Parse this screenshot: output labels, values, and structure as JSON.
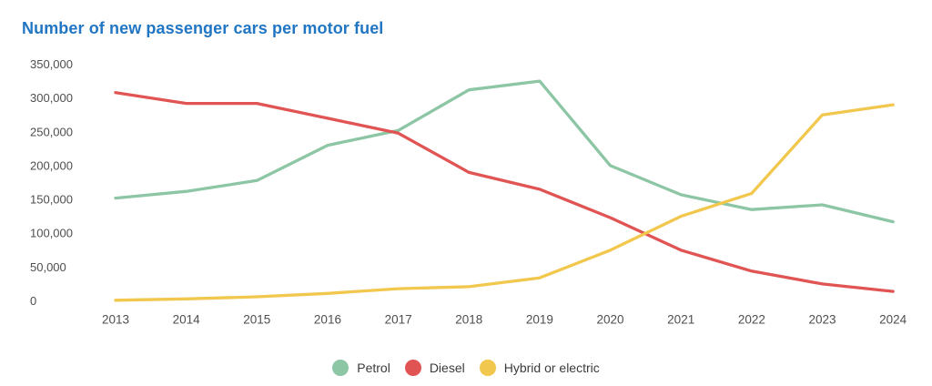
{
  "title": {
    "text": "Number of new passenger cars per motor fuel",
    "color": "#2176c4"
  },
  "chart_data": {
    "type": "line",
    "title": "Number of new passenger cars per motor fuel",
    "xlabel": "",
    "ylabel": "",
    "categories": [
      "2013",
      "2014",
      "2015",
      "2016",
      "2017",
      "2018",
      "2019",
      "2020",
      "2021",
      "2022",
      "2023",
      "2024"
    ],
    "series": [
      {
        "name": "Petrol",
        "color": "#8cc6a4",
        "values": [
          152000,
          162000,
          178000,
          230000,
          252000,
          312000,
          325000,
          200000,
          157000,
          135000,
          142000,
          117000
        ]
      },
      {
        "name": "Diesel",
        "color": "#e15454",
        "values": [
          308000,
          292000,
          292000,
          270000,
          248000,
          190000,
          165000,
          123000,
          75000,
          44000,
          25000,
          14000
        ]
      },
      {
        "name": "Hybrid or electric",
        "color": "#f2c74e",
        "values": [
          1000,
          3000,
          6000,
          11000,
          18000,
          21000,
          34000,
          75000,
          125000,
          159000,
          275000,
          290000
        ]
      }
    ],
    "y_ticks": [
      0,
      50000,
      100000,
      150000,
      200000,
      250000,
      300000,
      350000
    ],
    "ylim": [
      0,
      350000
    ],
    "grid": false,
    "axis_lines": false,
    "point_markers": false,
    "legend_position": "bottom",
    "axis_text_color": "#4e4e4e",
    "legend_text_color": "#3b3b3b",
    "background_color": "#ffffff"
  }
}
